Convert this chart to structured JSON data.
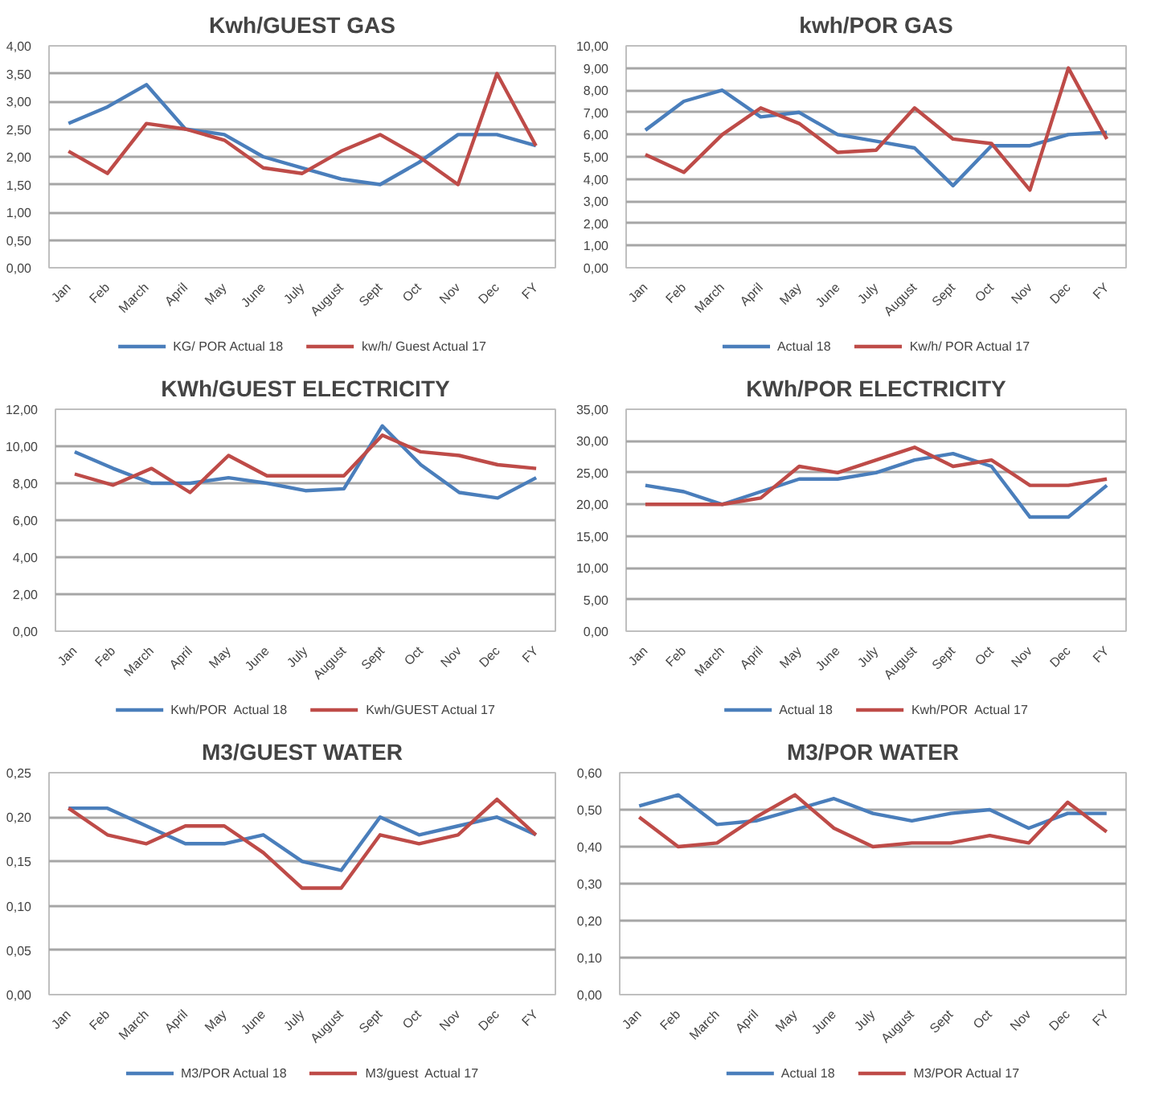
{
  "chart_data": [
    {
      "type": "line",
      "title": "Kwh/GUEST GAS",
      "categories": [
        "Jan",
        "Feb",
        "March",
        "April",
        "May",
        "June",
        "July",
        "August",
        "Sept",
        "Oct",
        "Nov",
        "Dec",
        "FY"
      ],
      "ylim": [
        0,
        4
      ],
      "yticks": [
        {
          "value": 0,
          "label": "0,00"
        },
        {
          "value": 0.5,
          "label": "0,50"
        },
        {
          "value": 1,
          "label": "1,00"
        },
        {
          "value": 1.5,
          "label": "1,50"
        },
        {
          "value": 2,
          "label": "2,00"
        },
        {
          "value": 2.5,
          "label": "2,50"
        },
        {
          "value": 3,
          "label": "3,00"
        },
        {
          "value": 3.5,
          "label": "3,50"
        },
        {
          "value": 4,
          "label": "4,00"
        }
      ],
      "grid": "y",
      "legend": "bottom",
      "series": [
        {
          "name": "KG/ POR Actual 18",
          "color": "#4a7ebb",
          "values": [
            2.6,
            2.9,
            3.3,
            2.5,
            2.4,
            2.0,
            1.8,
            1.6,
            1.5,
            1.9,
            2.4,
            2.4,
            2.2
          ]
        },
        {
          "name": "kw/h/ Guest Actual 17",
          "color": "#be4b48",
          "values": [
            2.1,
            1.7,
            2.6,
            2.5,
            2.3,
            1.8,
            1.7,
            2.1,
            2.4,
            2.0,
            1.5,
            3.5,
            2.2
          ]
        }
      ]
    },
    {
      "type": "line",
      "title": "kwh/POR GAS",
      "categories": [
        "Jan",
        "Feb",
        "March",
        "April",
        "May",
        "June",
        "July",
        "August",
        "Sept",
        "Oct",
        "Nov",
        "Dec",
        "FY"
      ],
      "ylim": [
        0,
        10
      ],
      "yticks": [
        {
          "value": 0,
          "label": "0,00"
        },
        {
          "value": 1,
          "label": "1,00"
        },
        {
          "value": 2,
          "label": "2,00"
        },
        {
          "value": 3,
          "label": "3,00"
        },
        {
          "value": 4,
          "label": "4,00"
        },
        {
          "value": 5,
          "label": "5,00"
        },
        {
          "value": 6,
          "label": "6,00"
        },
        {
          "value": 7,
          "label": "7,00"
        },
        {
          "value": 8,
          "label": "8,00"
        },
        {
          "value": 9,
          "label": "9,00"
        },
        {
          "value": 10,
          "label": "10,00"
        }
      ],
      "grid": "y",
      "legend": "bottom",
      "series": [
        {
          "name": "Actual 18",
          "color": "#4a7ebb",
          "values": [
            6.2,
            7.5,
            8.0,
            6.8,
            7.0,
            6.0,
            5.7,
            5.4,
            3.7,
            5.5,
            5.5,
            6.0,
            6.1
          ]
        },
        {
          "name": "Kw/h/ POR Actual 17",
          "color": "#be4b48",
          "values": [
            5.1,
            4.3,
            6.0,
            7.2,
            6.5,
            5.2,
            5.3,
            7.2,
            5.8,
            5.6,
            3.5,
            9.0,
            5.8
          ]
        }
      ]
    },
    {
      "type": "line",
      "title": "KWh/GUEST ELECTRICITY",
      "categories": [
        "Jan",
        "Feb",
        "March",
        "April",
        "May",
        "June",
        "July",
        "August",
        "Sept",
        "Oct",
        "Nov",
        "Dec",
        "FY"
      ],
      "ylim": [
        0,
        12
      ],
      "yticks": [
        {
          "value": 0,
          "label": "0,00"
        },
        {
          "value": 2,
          "label": "2,00"
        },
        {
          "value": 4,
          "label": "4,00"
        },
        {
          "value": 6,
          "label": "6,00"
        },
        {
          "value": 8,
          "label": "8,00"
        },
        {
          "value": 10,
          "label": "10,00"
        },
        {
          "value": 12,
          "label": "12,00"
        }
      ],
      "grid": "y",
      "legend": "bottom",
      "series": [
        {
          "name": "Kwh/POR  Actual 18",
          "color": "#4a7ebb",
          "values": [
            9.7,
            8.8,
            8.0,
            8.0,
            8.3,
            8.0,
            7.6,
            7.7,
            11.1,
            9.0,
            7.5,
            7.2,
            8.3
          ]
        },
        {
          "name": "Kwh/GUEST Actual 17",
          "color": "#be4b48",
          "values": [
            8.5,
            7.9,
            8.8,
            7.5,
            9.5,
            8.4,
            8.4,
            8.4,
            10.6,
            9.7,
            9.5,
            9.0,
            8.8
          ]
        }
      ]
    },
    {
      "type": "line",
      "title": "KWh/POR ELECTRICITY",
      "categories": [
        "Jan",
        "Feb",
        "March",
        "April",
        "May",
        "June",
        "July",
        "August",
        "Sept",
        "Oct",
        "Nov",
        "Dec",
        "FY"
      ],
      "ylim": [
        0,
        35
      ],
      "yticks": [
        {
          "value": 0,
          "label": "0,00"
        },
        {
          "value": 5,
          "label": "5,00"
        },
        {
          "value": 10,
          "label": "10,00"
        },
        {
          "value": 15,
          "label": "15,00"
        },
        {
          "value": 20,
          "label": "20,00"
        },
        {
          "value": 25,
          "label": "25,00"
        },
        {
          "value": 30,
          "label": "30,00"
        },
        {
          "value": 35,
          "label": "35,00"
        }
      ],
      "grid": "y",
      "legend": "bottom",
      "series": [
        {
          "name": "Actual 18",
          "color": "#4a7ebb",
          "values": [
            23,
            22,
            20,
            22,
            24,
            24,
            25,
            27,
            28,
            26,
            18,
            18,
            23
          ]
        },
        {
          "name": "Kwh/POR  Actual 17",
          "color": "#be4b48",
          "values": [
            20,
            20,
            20,
            21,
            26,
            25,
            27,
            29,
            26,
            27,
            23,
            23,
            24
          ]
        }
      ]
    },
    {
      "type": "line",
      "title": "M3/GUEST WATER",
      "categories": [
        "Jan",
        "Feb",
        "March",
        "April",
        "May",
        "June",
        "July",
        "August",
        "Sept",
        "Oct",
        "Nov",
        "Dec",
        "FY"
      ],
      "ylim": [
        0,
        0.25
      ],
      "yticks": [
        {
          "value": 0,
          "label": "0,00"
        },
        {
          "value": 0.05,
          "label": "0,05"
        },
        {
          "value": 0.1,
          "label": "0,10"
        },
        {
          "value": 0.15,
          "label": "0,15"
        },
        {
          "value": 0.2,
          "label": "0,20"
        },
        {
          "value": 0.25,
          "label": "0,25"
        }
      ],
      "grid": "y",
      "legend": "bottom",
      "series": [
        {
          "name": "M3/POR Actual 18",
          "color": "#4a7ebb",
          "values": [
            0.21,
            0.21,
            0.19,
            0.17,
            0.17,
            0.18,
            0.15,
            0.14,
            0.2,
            0.18,
            0.19,
            0.2,
            0.18
          ]
        },
        {
          "name": "M3/guest  Actual 17",
          "color": "#be4b48",
          "values": [
            0.21,
            0.18,
            0.17,
            0.19,
            0.19,
            0.16,
            0.12,
            0.12,
            0.18,
            0.17,
            0.18,
            0.22,
            0.18
          ]
        }
      ]
    },
    {
      "type": "line",
      "title": "M3/POR WATER",
      "categories": [
        "Jan",
        "Feb",
        "March",
        "April",
        "May",
        "June",
        "July",
        "August",
        "Sept",
        "Oct",
        "Nov",
        "Dec",
        "FY"
      ],
      "ylim": [
        0,
        0.6
      ],
      "yticks": [
        {
          "value": 0,
          "label": "0,00"
        },
        {
          "value": 0.1,
          "label": "0,10"
        },
        {
          "value": 0.2,
          "label": "0,20"
        },
        {
          "value": 0.3,
          "label": "0,30"
        },
        {
          "value": 0.4,
          "label": "0,40"
        },
        {
          "value": 0.5,
          "label": "0,50"
        },
        {
          "value": 0.6,
          "label": "0,60"
        }
      ],
      "grid": "y",
      "legend": "bottom",
      "series": [
        {
          "name": "Actual 18",
          "color": "#4a7ebb",
          "values": [
            0.51,
            0.54,
            0.46,
            0.47,
            0.5,
            0.53,
            0.49,
            0.47,
            0.49,
            0.5,
            0.45,
            0.49,
            0.49
          ]
        },
        {
          "name": "M3/POR Actual 17",
          "color": "#be4b48",
          "values": [
            0.48,
            0.4,
            0.41,
            0.48,
            0.54,
            0.45,
            0.4,
            0.41,
            0.41,
            0.43,
            0.41,
            0.52,
            0.44
          ]
        }
      ]
    }
  ]
}
